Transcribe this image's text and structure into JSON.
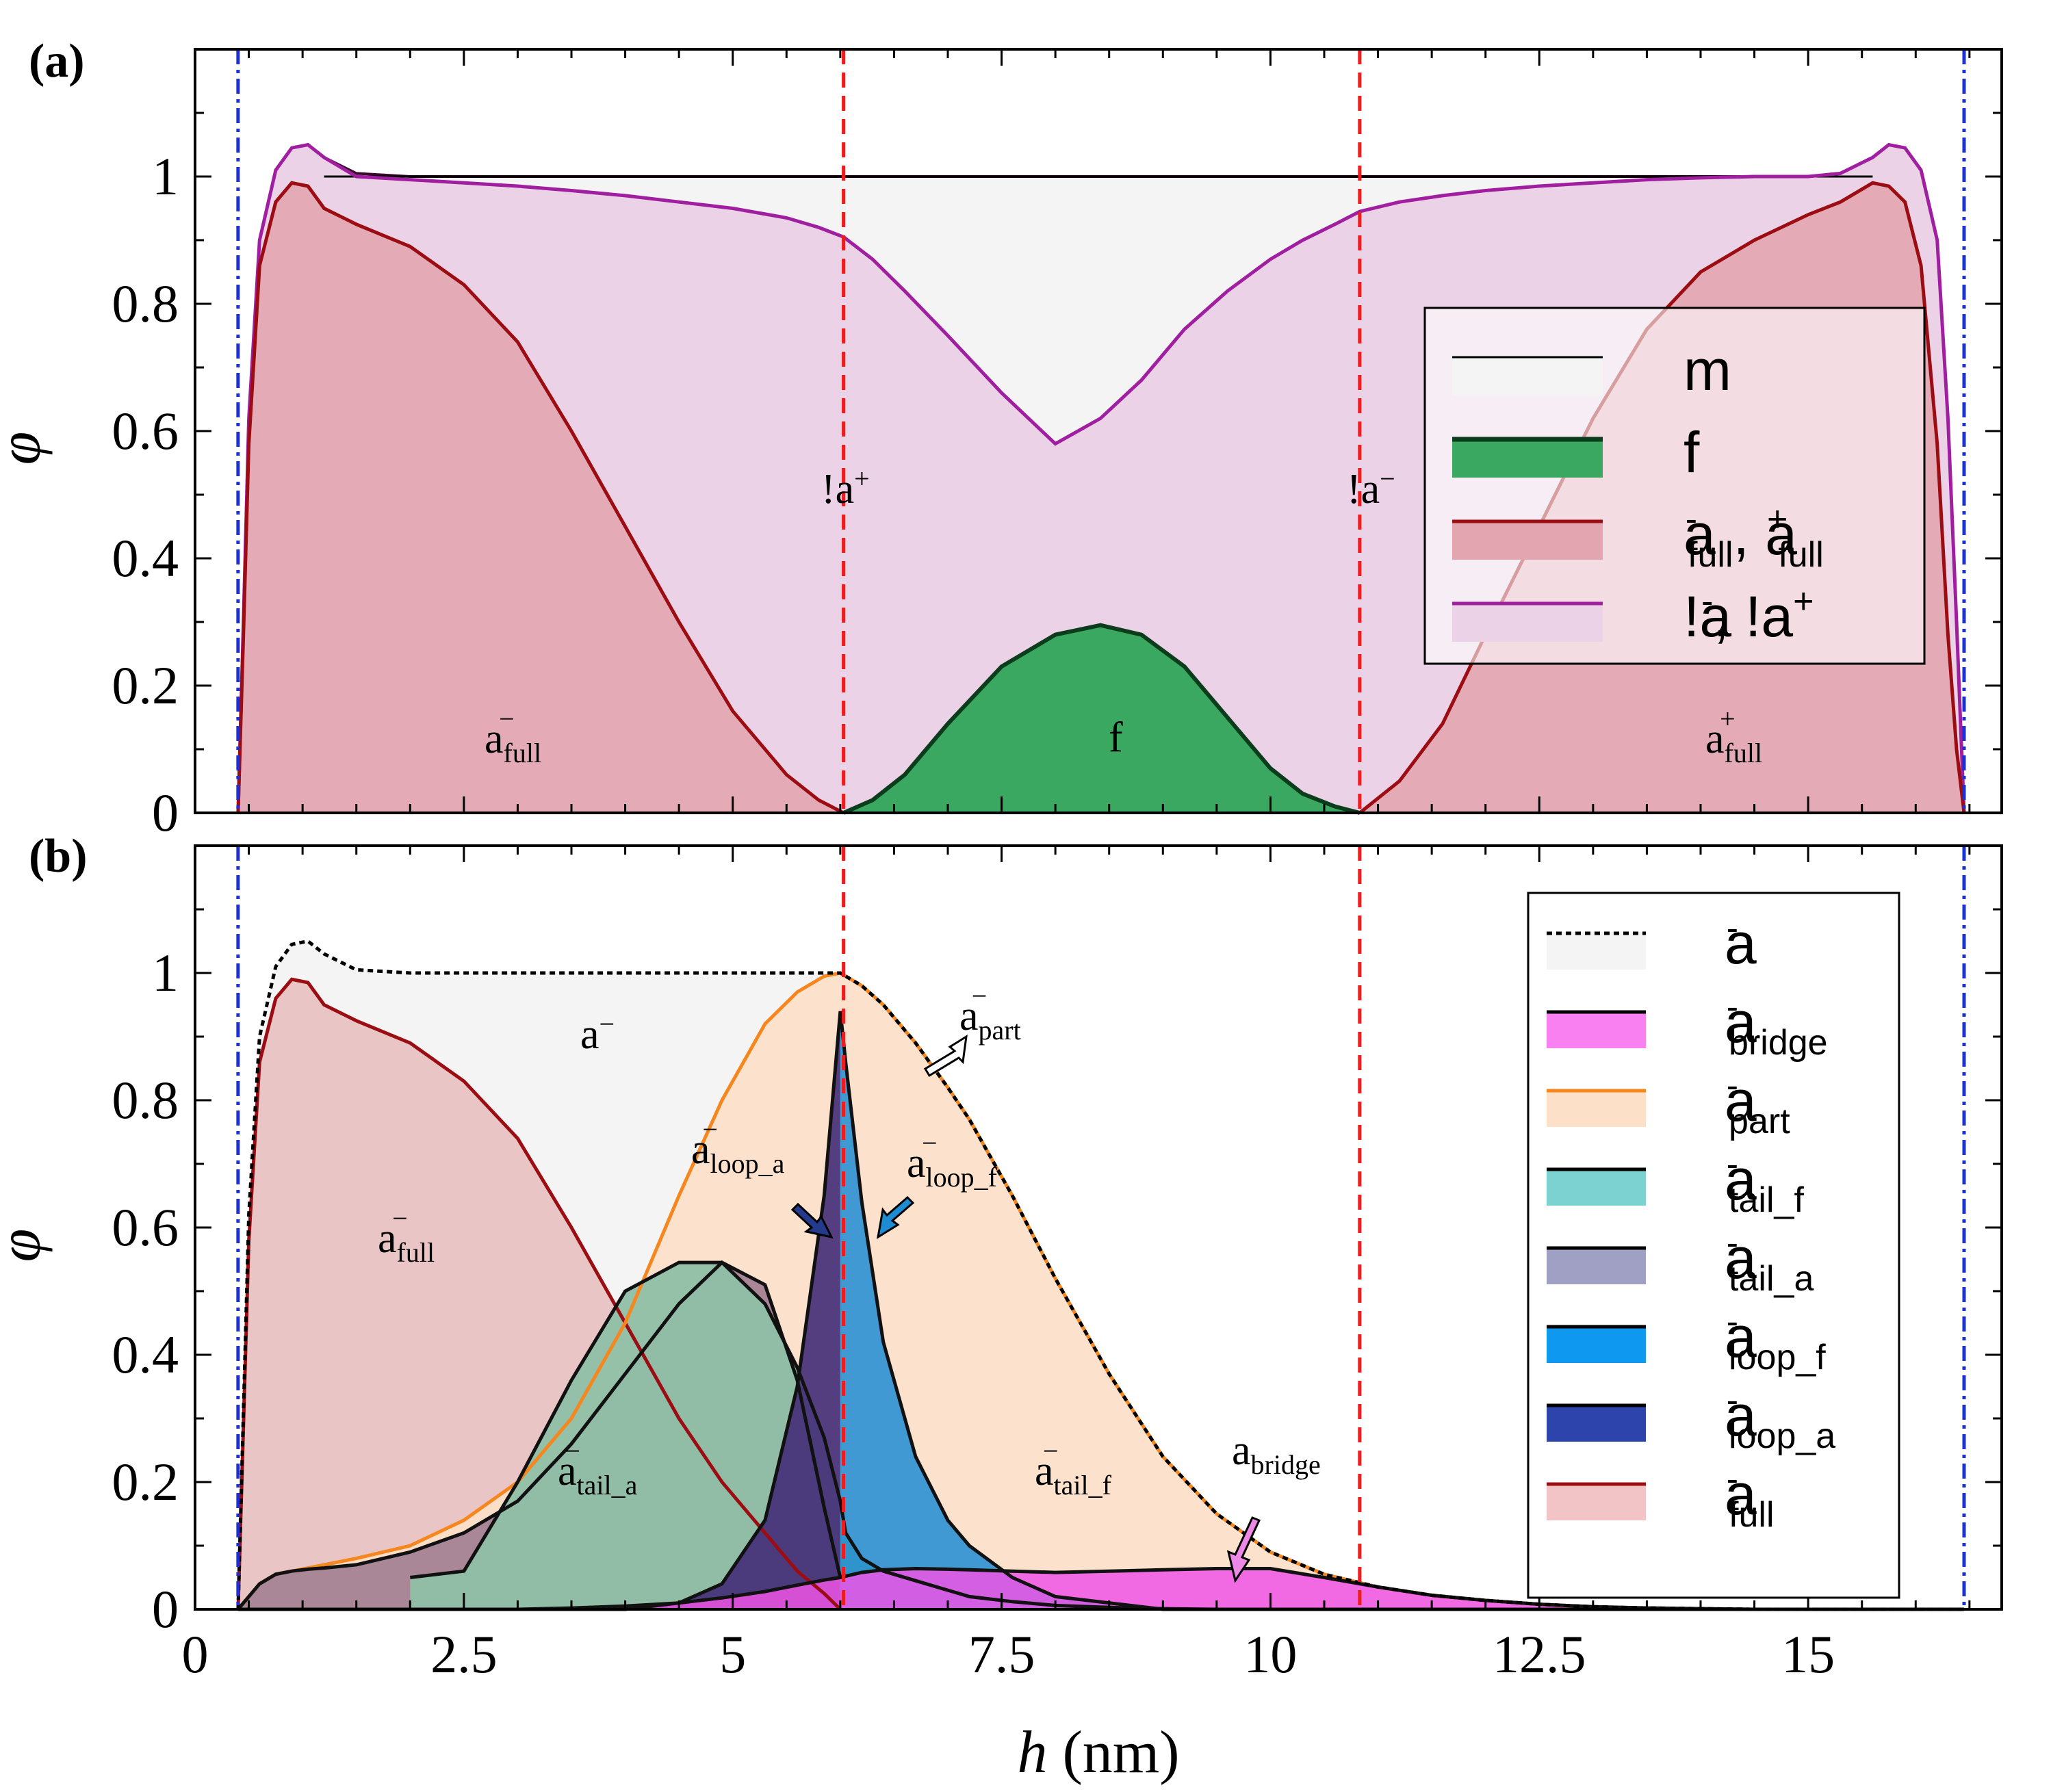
{
  "chart_data": [
    {
      "panel": "(a)",
      "type": "area",
      "x": [
        0.4,
        0.45,
        0.5,
        0.6,
        0.75,
        0.9,
        1.05,
        1.2,
        1.5,
        2,
        2.5,
        3,
        3.5,
        4,
        4.5,
        5,
        5.5,
        5.8,
        6.03,
        6.3,
        6.6,
        7,
        7.5,
        8,
        8.42,
        8.8,
        9.2,
        9.6,
        10,
        10.3,
        10.6,
        10.83,
        11.2,
        11.6,
        12,
        12.5,
        13,
        13.5,
        14,
        14.5,
        15,
        15.3,
        15.6,
        15.75,
        15.9,
        16.05,
        16.2,
        16.3,
        16.38,
        16.45
      ],
      "series": [
        {
          "name": "m",
          "values": [
            0,
            0.3,
            0.62,
            0.9,
            1.01,
            1.045,
            1.05,
            1.03,
            1.005,
            1,
            1,
            1,
            1,
            1,
            1,
            1,
            1,
            1,
            1,
            1,
            1,
            1,
            1,
            1,
            1,
            1,
            1,
            1,
            1,
            1,
            1,
            1,
            1,
            1,
            1,
            1,
            1,
            1,
            1,
            1,
            1,
            1.005,
            1.03,
            1.05,
            1.045,
            1.01,
            0.9,
            0.62,
            0.3,
            0
          ]
        },
        {
          "name": "!a-, !a+",
          "values": [
            0,
            0.3,
            0.62,
            0.9,
            1.01,
            1.045,
            1.05,
            1.03,
            1.0,
            0.995,
            0.99,
            0.985,
            0.978,
            0.97,
            0.96,
            0.95,
            0.935,
            0.92,
            0.905,
            0.87,
            0.82,
            0.75,
            0.66,
            0.58,
            0.62,
            0.68,
            0.76,
            0.82,
            0.87,
            0.9,
            0.925,
            0.945,
            0.96,
            0.97,
            0.978,
            0.985,
            0.99,
            0.995,
            0.998,
            1.0,
            1.0,
            1.005,
            1.03,
            1.05,
            1.045,
            1.01,
            0.9,
            0.62,
            0.3,
            0
          ]
        },
        {
          "name": "a-full",
          "values": [
            0,
            0.28,
            0.58,
            0.86,
            0.96,
            0.99,
            0.985,
            0.95,
            0.925,
            0.89,
            0.83,
            0.74,
            0.6,
            0.45,
            0.3,
            0.16,
            0.06,
            0.02,
            0,
            null,
            null,
            null,
            null,
            null,
            null,
            null,
            null,
            null,
            null,
            null,
            null,
            null,
            null,
            null,
            null,
            null,
            null,
            null,
            null,
            null,
            null,
            null,
            null,
            null,
            null,
            null,
            null,
            null,
            null,
            null
          ]
        },
        {
          "name": "a+full",
          "values": [
            null,
            null,
            null,
            null,
            null,
            null,
            null,
            null,
            null,
            null,
            null,
            null,
            null,
            null,
            null,
            null,
            null,
            null,
            null,
            null,
            null,
            null,
            null,
            null,
            null,
            null,
            null,
            null,
            null,
            null,
            null,
            0,
            0.05,
            0.14,
            0.28,
            0.45,
            0.62,
            0.76,
            0.85,
            0.9,
            0.94,
            0.96,
            0.99,
            0.985,
            0.96,
            0.86,
            0.58,
            0.28,
            0.1,
            0
          ]
        },
        {
          "name": "f",
          "values": [
            0,
            0,
            0,
            0,
            0,
            0,
            0,
            0,
            0,
            0,
            0,
            0,
            0,
            0,
            0,
            0,
            0,
            0,
            0,
            0.02,
            0.06,
            0.14,
            0.23,
            0.28,
            0.295,
            0.28,
            0.23,
            0.15,
            0.07,
            0.03,
            0.01,
            0,
            0,
            0,
            0,
            0,
            0,
            0,
            0,
            0,
            0,
            0,
            0,
            0,
            0,
            0,
            0,
            0,
            0,
            0
          ]
        }
      ],
      "xlim": [
        0,
        16.8
      ],
      "ylim": [
        0,
        1.2
      ],
      "xticks": [
        "0",
        "2.5",
        "5",
        "7.5",
        "10",
        "12.5",
        "15"
      ],
      "yticks": [
        "0",
        "0.2",
        "0.4",
        "0.6",
        "0.8",
        "1"
      ],
      "ylabel": "φ",
      "vlines_red": [
        6.03,
        10.83
      ],
      "vlines_blue": [
        0.4,
        16.45
      ],
      "annotations": [
        "a⁻full",
        "f",
        "a⁺full",
        "!a⁺",
        "!a⁻"
      ],
      "legend": [
        "m",
        "f",
        "a-full, a+full",
        "!a-, !a+"
      ]
    },
    {
      "panel": "(b)",
      "type": "area",
      "x": [
        0.4,
        0.5,
        0.6,
        0.75,
        0.9,
        1.05,
        1.2,
        1.5,
        2,
        2.5,
        3,
        3.5,
        4,
        4.5,
        4.9,
        5.3,
        5.6,
        5.85,
        6.0,
        6.05,
        6.2,
        6.4,
        6.7,
        7.0,
        7.2,
        7.6,
        8,
        8.5,
        9,
        9.5,
        10,
        10.5,
        11,
        11.5,
        12,
        12.5,
        13,
        13.5,
        14,
        14.5,
        15,
        15.5,
        16,
        16.45
      ],
      "series": [
        {
          "name": "a-",
          "values": [
            0,
            0.62,
            0.9,
            1.01,
            1.045,
            1.05,
            1.03,
            1.005,
            1,
            1,
            1,
            1,
            1,
            1,
            1,
            1,
            1,
            1,
            1,
            0.995,
            0.98,
            0.95,
            0.89,
            0.82,
            0.77,
            0.65,
            0.52,
            0.37,
            0.24,
            0.15,
            0.09,
            0.055,
            0.035,
            0.022,
            0.014,
            0.008,
            0.004,
            0.002,
            0.001,
            0,
            0,
            0,
            0,
            0
          ]
        },
        {
          "name": "a-full",
          "values": [
            0,
            0.58,
            0.86,
            0.96,
            0.99,
            0.985,
            0.95,
            0.925,
            0.89,
            0.83,
            0.74,
            0.6,
            0.45,
            0.3,
            0.2,
            0.12,
            0.06,
            0.025,
            0,
            null,
            null,
            null,
            null,
            null,
            null,
            null,
            null,
            null,
            null,
            null,
            null,
            null,
            null,
            null,
            null,
            null,
            null,
            null,
            null,
            null,
            null,
            null,
            null,
            null
          ]
        },
        {
          "name": "a-part",
          "values": [
            0,
            0.02,
            0.04,
            0.055,
            0.06,
            0.065,
            0.07,
            0.08,
            0.1,
            0.14,
            0.2,
            0.3,
            0.45,
            0.65,
            0.8,
            0.92,
            0.97,
            0.995,
            1,
            0.995,
            0.98,
            0.95,
            0.89,
            0.82,
            0.77,
            0.65,
            0.52,
            0.37,
            0.24,
            0.15,
            0.09,
            0.055,
            0.035,
            0.022,
            0.014,
            0.008,
            0.004,
            0.002,
            0.001,
            0,
            0,
            0,
            0,
            0
          ]
        },
        {
          "name": "a-tail_a",
          "values": [
            0,
            0.02,
            0.04,
            0.055,
            0.06,
            0.063,
            0.065,
            0.07,
            0.09,
            0.12,
            0.17,
            0.26,
            0.37,
            0.48,
            0.545,
            0.51,
            0.36,
            0.16,
            0.05,
            null,
            null,
            null,
            null,
            null,
            null,
            null,
            null,
            null,
            null,
            null,
            null,
            null,
            null,
            null,
            null,
            null,
            null,
            null,
            null,
            null,
            null,
            null,
            null,
            null
          ]
        },
        {
          "name": "a-loop_a",
          "values": [
            0,
            0,
            0,
            0,
            0,
            0,
            0,
            0,
            0,
            0,
            0,
            0,
            0,
            0.01,
            0.04,
            0.14,
            0.35,
            0.65,
            0.94,
            null,
            null,
            null,
            null,
            null,
            null,
            null,
            null,
            null,
            null,
            null,
            null,
            null,
            null,
            null,
            null,
            null,
            null,
            null,
            null,
            null,
            null,
            null,
            null,
            null
          ]
        },
        {
          "name": "a-loop_f",
          "values": [
            null,
            null,
            null,
            null,
            null,
            null,
            null,
            null,
            null,
            null,
            null,
            null,
            null,
            null,
            null,
            null,
            null,
            null,
            0.94,
            0.86,
            0.64,
            0.42,
            0.24,
            0.14,
            0.1,
            0.05,
            0.02,
            0.01,
            0,
            0,
            0,
            0,
            0,
            0,
            0,
            0,
            0,
            0,
            0,
            0,
            0,
            0,
            0,
            0
          ]
        },
        {
          "name": "a-tail_f",
          "values": [
            null,
            null,
            null,
            null,
            null,
            null,
            null,
            null,
            0.05,
            0.06,
            0.2,
            0.36,
            0.5,
            0.545,
            0.545,
            0.48,
            0.38,
            0.27,
            0.17,
            0.12,
            0.08,
            0.06,
            0.045,
            0.03,
            0.02,
            0.012,
            0.006,
            0.003,
            0.001,
            0,
            0,
            0,
            0,
            0,
            0,
            0,
            0,
            0,
            0,
            0,
            0,
            0,
            0,
            0
          ]
        },
        {
          "name": "a-bridge",
          "values": [
            0,
            0,
            0,
            0,
            0,
            0,
            0,
            0,
            0,
            0,
            0,
            0.002,
            0.005,
            0.01,
            0.018,
            0.028,
            0.038,
            0.046,
            0.05,
            0.052,
            0.058,
            0.062,
            0.064,
            0.063,
            0.062,
            0.06,
            0.058,
            0.06,
            0.062,
            0.064,
            0.064,
            0.05,
            0.035,
            0.022,
            0.014,
            0.008,
            0.004,
            0.002,
            0.001,
            0,
            0,
            0,
            0,
            0
          ]
        }
      ],
      "xlim": [
        0,
        16.8
      ],
      "ylim": [
        0,
        1.2
      ],
      "xticks": [
        "0",
        "2.5",
        "5",
        "7.5",
        "10",
        "12.5",
        "15"
      ],
      "yticks": [
        "0",
        "0.2",
        "0.4",
        "0.6",
        "0.8",
        "1"
      ],
      "xlabel": "h (nm)",
      "ylabel": "φ",
      "annotations": [
        "a⁻",
        "a⁻full",
        "a⁻tail_a",
        "a⁻loop_a",
        "a⁻loop_f",
        "a⁻part",
        "a⁻tail_f",
        "abridge"
      ],
      "legend": [
        "a-",
        "a-bridge",
        "a-part",
        "a-tail_f",
        "a-tail_a",
        "a-loop_f",
        "a-loop_a",
        "a-full"
      ]
    }
  ],
  "panels": {
    "a": {
      "label": "(a)"
    },
    "b": {
      "label": "(b)"
    }
  },
  "axis": {
    "xlabel_italic": "h",
    "xlabel_unit": " (nm)",
    "ylabel": "φ"
  },
  "annot_a": {
    "afull_left": "a",
    "afull_left_sub": "full",
    "afull_left_sup": "−",
    "f": "f",
    "afull_right": "a",
    "afull_right_sub": "full",
    "afull_right_sup": "+",
    "nota_plus": "!a",
    "nota_plus_sup": "+",
    "nota_minus": "!a",
    "nota_minus_sup": "−"
  },
  "annot_b": {
    "am": "a",
    "am_sup": "−",
    "full": "a",
    "full_sub": "full",
    "full_sup": "−",
    "tail_a": "a",
    "tail_a_sub": "tail_a",
    "tail_a_sup": "−",
    "loop_a": "a",
    "loop_a_sub": "loop_a",
    "loop_a_sup": "−",
    "loop_f": "a",
    "loop_f_sub": "loop_f",
    "loop_f_sup": "−",
    "part": "a",
    "part_sub": "part",
    "part_sup": "−",
    "tail_f": "a",
    "tail_f_sub": "tail_f",
    "tail_f_sup": "−",
    "bridge": "a",
    "bridge_sub": "bridge"
  },
  "legend_a": [
    {
      "main": "m",
      "sub": "",
      "sup": ""
    },
    {
      "main": "f",
      "sub": "",
      "sup": ""
    },
    {
      "main": "a",
      "sub": "full",
      "sup": "-",
      "tail": ", a",
      "tail_sub": "full",
      "tail_sup": "+"
    },
    {
      "main": "!a",
      "sub": "",
      "sup": "-",
      "tail": ", !a",
      "tail_sub": "",
      "tail_sup": "+"
    }
  ],
  "legend_b": [
    {
      "main": "a",
      "sub": "",
      "sup": "-"
    },
    {
      "main": "a",
      "sub": "bridge",
      "sup": "-"
    },
    {
      "main": "a",
      "sub": "part",
      "sup": "-"
    },
    {
      "main": "a",
      "sub": "tail_f",
      "sup": "-"
    },
    {
      "main": "a",
      "sub": "tail_a",
      "sup": "-"
    },
    {
      "main": "a",
      "sub": "loop_f",
      "sup": "-"
    },
    {
      "main": "a",
      "sub": "loop_a",
      "sup": "-"
    },
    {
      "main": "a",
      "sub": "full",
      "sup": "-"
    }
  ],
  "colors": {
    "m_fill": "#f4f4f4",
    "m_line": "#000000",
    "f_fill": "#3aa860",
    "f_line": "#0b3d1c",
    "afull_fill": "#e3a6b0",
    "afull_line": "#9b0d12",
    "nota_fill": "#ecd2e6",
    "nota_line": "#a01ea0",
    "am_line": "#000000",
    "bridge_fill": "#ee55e6",
    "part_fill": "#fde0c8",
    "part_line": "#f5871e",
    "tailf_fill": "#8fbfa6",
    "taila_fill": "#a27f92",
    "loopf_fill": "#1e8cd2",
    "loopa_fill": "#453078",
    "full_b_fill": "#e8c0c0",
    "red_vline": "#ee1c1c",
    "blue_vline": "#1a2fd6"
  }
}
